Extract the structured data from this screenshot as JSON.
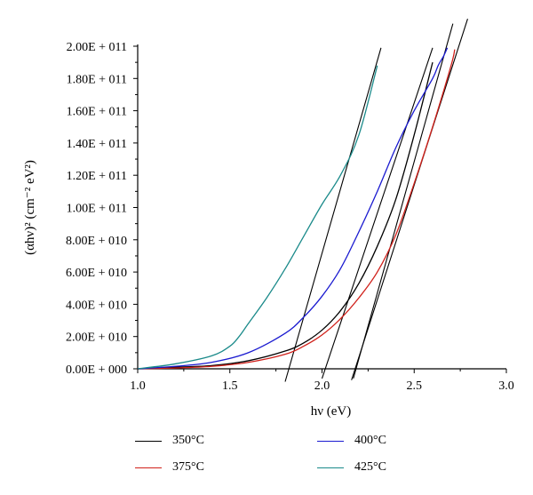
{
  "chart_data": {
    "type": "line",
    "xlabel": "hν (eV)",
    "ylabel": "(αhν)² (cm⁻² eV²)",
    "xlim": [
      1.0,
      3.0
    ],
    "ylim": [
      0,
      200000000000
    ],
    "x_ticks": [
      1.0,
      1.5,
      2.0,
      2.5,
      3.0
    ],
    "x_tick_labels": [
      "1.0",
      "1.5",
      "2.0",
      "2.5",
      "3.0"
    ],
    "y_ticks": [
      0,
      20000000000,
      40000000000,
      60000000000,
      80000000000,
      100000000000,
      120000000000,
      140000000000,
      160000000000,
      180000000000,
      200000000000
    ],
    "y_tick_labels": [
      "0.00E + 000",
      "2.00E + 010",
      "4.00E + 010",
      "6.00E + 010",
      "8.00E + 010",
      "1.00E + 011",
      "1.20E + 011",
      "1.40E + 011",
      "1.60E + 011",
      "1.80E + 011",
      "2.00E + 011"
    ],
    "grid": false,
    "legend_position": "bottom",
    "series": [
      {
        "name": "350°C",
        "color": "#000000",
        "x": [
          1.0,
          1.2,
          1.4,
          1.6,
          1.8,
          1.9,
          2.0,
          2.1,
          2.2,
          2.3,
          2.4,
          2.5,
          2.6
        ],
        "y": [
          0,
          1000000000,
          2000000000,
          5000000000,
          11000000000,
          16000000000,
          24000000000,
          36000000000,
          53000000000,
          76000000000,
          105000000000,
          145000000000,
          190000000000
        ]
      },
      {
        "name": "375°C",
        "color": "#d0201a",
        "x": [
          1.0,
          1.2,
          1.4,
          1.6,
          1.8,
          1.9,
          2.0,
          2.1,
          2.2,
          2.3,
          2.4,
          2.5,
          2.6,
          2.7,
          2.72
        ],
        "y": [
          0,
          500000000,
          1500000000,
          4000000000,
          9000000000,
          14000000000,
          21000000000,
          31000000000,
          44000000000,
          60000000000,
          83000000000,
          115000000000,
          150000000000,
          188000000000,
          198000000000
        ]
      },
      {
        "name": "400°C",
        "color": "#1a1ad0",
        "x": [
          1.0,
          1.2,
          1.4,
          1.6,
          1.8,
          1.9,
          2.0,
          2.1,
          2.2,
          2.3,
          2.4,
          2.5,
          2.6,
          2.63,
          2.66,
          2.68
        ],
        "y": [
          0,
          1500000000,
          4000000000,
          10000000000,
          22000000000,
          32000000000,
          45000000000,
          62000000000,
          85000000000,
          110000000000,
          137000000000,
          160000000000,
          180000000000,
          188000000000,
          194000000000,
          199000000000
        ]
      },
      {
        "name": "425°C",
        "color": "#1a8a8a",
        "x": [
          1.0,
          1.2,
          1.4,
          1.5,
          1.55,
          1.6,
          1.7,
          1.8,
          1.9,
          2.0,
          2.1,
          2.2,
          2.3
        ],
        "y": [
          0,
          3000000000,
          8000000000,
          14000000000,
          20000000000,
          28000000000,
          44000000000,
          62000000000,
          82000000000,
          102000000000,
          120000000000,
          145000000000,
          188000000000
        ]
      }
    ],
    "tangent_lines": [
      {
        "x": [
          1.8,
          2.32
        ],
        "y": [
          -8000000000,
          199000000000
        ]
      },
      {
        "x": [
          2.0,
          2.6
        ],
        "y": [
          -6000000000,
          199000000000
        ]
      },
      {
        "x": [
          2.17,
          2.71
        ],
        "y": [
          -6000000000,
          214000000000
        ]
      },
      {
        "x": [
          2.16,
          2.79
        ],
        "y": [
          -7000000000,
          217000000000
        ]
      }
    ]
  }
}
